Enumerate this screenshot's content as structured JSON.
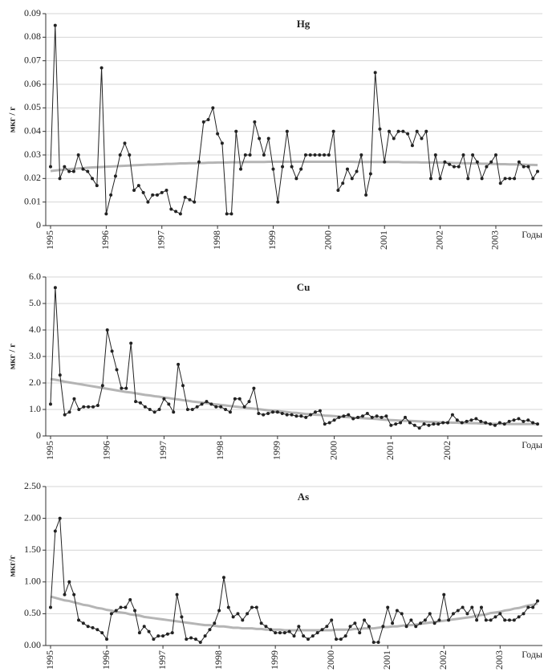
{
  "chart_data": [
    {
      "type": "line",
      "title": "Hg",
      "y_label": "мкг / г",
      "x_label": "Годы",
      "categories": [
        "1995",
        null,
        null,
        null,
        null,
        null,
        null,
        null,
        null,
        null,
        null,
        null,
        "1996",
        null,
        null,
        null,
        null,
        null,
        null,
        null,
        null,
        null,
        null,
        null,
        "1997",
        null,
        null,
        null,
        null,
        null,
        null,
        null,
        null,
        null,
        null,
        null,
        "1998",
        null,
        null,
        null,
        null,
        null,
        null,
        null,
        null,
        null,
        null,
        null,
        "1999",
        null,
        null,
        null,
        null,
        null,
        null,
        null,
        null,
        null,
        null,
        null,
        "2000",
        null,
        null,
        null,
        null,
        null,
        null,
        null,
        null,
        null,
        null,
        null,
        "2001",
        null,
        null,
        null,
        null,
        null,
        null,
        null,
        null,
        null,
        null,
        null,
        "2002",
        null,
        null,
        null,
        null,
        null,
        null,
        null,
        null,
        null,
        null,
        null,
        "2003",
        null,
        null,
        null,
        null,
        null,
        null,
        null,
        null,
        null
      ],
      "series": [
        {
          "color": "#222222",
          "markers": true,
          "values": [
            0.025,
            0.085,
            0.02,
            0.025,
            0.023,
            0.023,
            0.03,
            0.024,
            0.023,
            0.02,
            0.017,
            0.067,
            0.005,
            0.013,
            0.021,
            0.03,
            0.035,
            0.03,
            0.015,
            0.017,
            0.014,
            0.01,
            0.013,
            0.013,
            0.014,
            0.015,
            0.007,
            0.006,
            0.005,
            0.012,
            0.011,
            0.01,
            0.027,
            0.044,
            0.045,
            0.05,
            0.039,
            0.035,
            0.005,
            0.005,
            0.04,
            0.024,
            0.03,
            0.03,
            0.044,
            0.037,
            0.03,
            0.037,
            0.024,
            0.01,
            0.025,
            0.04,
            0.025,
            0.02,
            0.024,
            0.03,
            0.03,
            0.03,
            0.03,
            0.03,
            0.03,
            0.04,
            0.015,
            0.018,
            0.024,
            0.02,
            0.023,
            0.03,
            0.013,
            0.022,
            0.065,
            0.041,
            0.027,
            0.04,
            0.037,
            0.04,
            0.04,
            0.039,
            0.034,
            0.04,
            0.037,
            0.04,
            0.02,
            0.03,
            0.02,
            0.027,
            0.026,
            0.025,
            0.025,
            0.03,
            0.02,
            0.03,
            0.027,
            0.02,
            0.025,
            0.027,
            0.03,
            0.018,
            0.02,
            0.02,
            0.02,
            0.027,
            0.025,
            0.025,
            0.02,
            0.023
          ]
        },
        {
          "color": "#a8a8a8",
          "markers": false,
          "values": [
            0.0232,
            0.0234,
            0.0236,
            0.0238,
            0.024,
            0.0241,
            0.0243,
            0.0244,
            0.0246,
            0.0247,
            0.0248,
            0.0249,
            0.025,
            0.0251,
            0.0252,
            0.0253,
            0.0254,
            0.0255,
            0.0256,
            0.0257,
            0.0258,
            0.0259,
            0.0259,
            0.026,
            0.0261,
            0.0262,
            0.0262,
            0.0263,
            0.0264,
            0.0264,
            0.0265,
            0.0265,
            0.0266,
            0.0266,
            0.0267,
            0.0267,
            0.0268,
            0.0268,
            0.0268,
            0.0269,
            0.0269,
            0.0269,
            0.027,
            0.027,
            0.027,
            0.027,
            0.027,
            0.0271,
            0.0271,
            0.0271,
            0.0271,
            0.0271,
            0.0271,
            0.0271,
            0.0271,
            0.0271,
            0.0271,
            0.0271,
            0.0271,
            0.0271,
            0.0271,
            0.0271,
            0.0271,
            0.0271,
            0.0271,
            0.0271,
            0.027,
            0.027,
            0.027,
            0.027,
            0.027,
            0.027,
            0.027,
            0.027,
            0.027,
            0.027,
            0.0269,
            0.0269,
            0.0269,
            0.0269,
            0.0268,
            0.0268,
            0.0268,
            0.0268,
            0.0268,
            0.0267,
            0.0267,
            0.0266,
            0.0266,
            0.0265,
            0.0265,
            0.0264,
            0.0264,
            0.0263,
            0.0263,
            0.0262,
            0.0262,
            0.0261,
            0.0261,
            0.026,
            0.026,
            0.0259,
            0.0259,
            0.0258,
            0.0258,
            0.0257
          ]
        }
      ],
      "ylim": [
        0,
        0.09
      ],
      "yticks": [
        0,
        0.01,
        0.02,
        0.03,
        0.04,
        0.05,
        0.06,
        0.07,
        0.08,
        0.09
      ],
      "grid": true
    },
    {
      "type": "line",
      "title": "Cu",
      "y_label": "мкг / г",
      "x_label": "Годы",
      "categories": [
        "1995",
        null,
        null,
        null,
        null,
        null,
        null,
        null,
        null,
        null,
        null,
        null,
        "1996",
        null,
        null,
        null,
        null,
        null,
        null,
        null,
        null,
        null,
        null,
        null,
        "1997",
        null,
        null,
        null,
        null,
        null,
        null,
        null,
        null,
        null,
        null,
        null,
        "1998",
        null,
        null,
        null,
        null,
        null,
        null,
        null,
        null,
        null,
        null,
        null,
        "1999",
        null,
        null,
        null,
        null,
        null,
        null,
        null,
        null,
        null,
        null,
        null,
        "2000",
        null,
        null,
        null,
        null,
        null,
        null,
        null,
        null,
        null,
        null,
        null,
        "2001",
        null,
        null,
        null,
        null,
        null,
        null,
        null,
        null,
        null,
        null,
        null,
        "2002",
        null,
        null,
        null,
        null,
        null,
        null,
        null,
        null,
        null,
        null,
        null,
        null,
        null,
        null,
        null,
        null,
        null,
        null,
        null
      ],
      "series": [
        {
          "color": "#222222",
          "markers": true,
          "values": [
            1.2,
            5.6,
            2.3,
            0.8,
            0.9,
            1.4,
            1.0,
            1.1,
            1.1,
            1.1,
            1.15,
            1.9,
            4.0,
            3.2,
            2.5,
            1.8,
            1.8,
            3.5,
            1.3,
            1.25,
            1.1,
            1.0,
            0.9,
            1.0,
            1.4,
            1.2,
            0.9,
            2.7,
            1.9,
            1.0,
            1.0,
            1.1,
            1.2,
            1.3,
            1.2,
            1.1,
            1.1,
            1.0,
            0.9,
            1.4,
            1.4,
            1.1,
            1.3,
            1.8,
            0.85,
            0.8,
            0.85,
            0.9,
            0.9,
            0.85,
            0.8,
            0.8,
            0.75,
            0.75,
            0.7,
            0.8,
            0.9,
            0.95,
            0.45,
            0.5,
            0.6,
            0.7,
            0.75,
            0.8,
            0.65,
            0.7,
            0.75,
            0.85,
            0.7,
            0.75,
            0.7,
            0.75,
            0.4,
            0.45,
            0.5,
            0.7,
            0.5,
            0.4,
            0.3,
            0.45,
            0.4,
            0.45,
            0.45,
            0.5,
            0.5,
            0.8,
            0.6,
            0.5,
            0.55,
            0.6,
            0.65,
            0.55,
            0.5,
            0.45,
            0.4,
            0.5,
            0.45,
            0.55,
            0.6,
            0.65,
            0.55,
            0.6,
            0.5,
            0.45
          ]
        },
        {
          "color": "#a8a8a8",
          "markers": false,
          "values": [
            2.15,
            2.12,
            2.09,
            2.05,
            2.02,
            1.99,
            1.96,
            1.93,
            1.9,
            1.87,
            1.84,
            1.81,
            1.78,
            1.75,
            1.72,
            1.69,
            1.66,
            1.64,
            1.61,
            1.58,
            1.55,
            1.53,
            1.5,
            1.48,
            1.45,
            1.43,
            1.4,
            1.38,
            1.35,
            1.33,
            1.3,
            1.28,
            1.26,
            1.24,
            1.21,
            1.19,
            1.17,
            1.15,
            1.13,
            1.11,
            1.09,
            1.07,
            1.05,
            1.03,
            1.01,
            0.99,
            0.97,
            0.95,
            0.94,
            0.92,
            0.9,
            0.88,
            0.87,
            0.85,
            0.83,
            0.82,
            0.8,
            0.79,
            0.77,
            0.76,
            0.75,
            0.73,
            0.72,
            0.71,
            0.69,
            0.68,
            0.67,
            0.66,
            0.65,
            0.64,
            0.62,
            0.61,
            0.6,
            0.59,
            0.58,
            0.57,
            0.57,
            0.56,
            0.55,
            0.54,
            0.53,
            0.53,
            0.52,
            0.51,
            0.51,
            0.5,
            0.5,
            0.49,
            0.49,
            0.48,
            0.48,
            0.47,
            0.47,
            0.46,
            0.46,
            0.46,
            0.46,
            0.45,
            0.45,
            0.45,
            0.45,
            0.45,
            0.45,
            0.45
          ]
        }
      ],
      "ylim": [
        0,
        6
      ],
      "yticks": [
        0,
        {
          "value": 1,
          "label": "1.0"
        },
        {
          "value": 2,
          "label": "2.0"
        },
        {
          "value": 3,
          "label": "3.0"
        },
        {
          "value": 4,
          "label": "4.0"
        },
        {
          "value": 5,
          "label": "5.0"
        },
        {
          "value": 6,
          "label": "6.0"
        }
      ],
      "grid": true
    },
    {
      "type": "line",
      "title": "As",
      "y_label": "мкг/г",
      "x_label": "Годы",
      "categories": [
        "1995",
        null,
        null,
        null,
        null,
        null,
        null,
        null,
        null,
        null,
        null,
        null,
        "1996",
        null,
        null,
        null,
        null,
        null,
        null,
        null,
        null,
        null,
        null,
        null,
        "1997",
        null,
        null,
        null,
        null,
        null,
        null,
        null,
        null,
        null,
        null,
        null,
        "1998",
        null,
        null,
        null,
        null,
        null,
        null,
        null,
        null,
        null,
        null,
        null,
        "1999",
        null,
        null,
        null,
        null,
        null,
        null,
        null,
        null,
        null,
        null,
        null,
        "2000",
        null,
        null,
        null,
        null,
        null,
        null,
        null,
        null,
        null,
        null,
        null,
        "2001",
        null,
        null,
        null,
        null,
        null,
        null,
        null,
        null,
        null,
        null,
        null,
        "2002",
        null,
        null,
        null,
        null,
        null,
        null,
        null,
        null,
        null,
        null,
        null,
        "2003",
        null,
        null,
        null,
        null,
        null,
        null,
        null,
        null
      ],
      "series": [
        {
          "color": "#222222",
          "markers": true,
          "values": [
            0.6,
            1.8,
            2.0,
            0.8,
            1.0,
            0.8,
            0.4,
            0.35,
            0.3,
            0.28,
            0.25,
            0.2,
            0.1,
            0.5,
            0.55,
            0.6,
            0.6,
            0.72,
            0.55,
            0.2,
            0.3,
            0.22,
            0.1,
            0.15,
            0.15,
            0.18,
            0.2,
            0.8,
            0.45,
            0.1,
            0.12,
            0.1,
            0.05,
            0.15,
            0.25,
            0.35,
            0.55,
            1.07,
            0.6,
            0.45,
            0.5,
            0.4,
            0.5,
            0.6,
            0.6,
            0.35,
            0.3,
            0.25,
            0.2,
            0.2,
            0.2,
            0.22,
            0.15,
            0.3,
            0.15,
            0.1,
            0.15,
            0.2,
            0.25,
            0.3,
            0.4,
            0.1,
            0.1,
            0.15,
            0.3,
            0.35,
            0.2,
            0.4,
            0.3,
            0.05,
            0.05,
            0.3,
            0.6,
            0.35,
            0.55,
            0.5,
            0.3,
            0.4,
            0.3,
            0.35,
            0.4,
            0.5,
            0.35,
            0.4,
            0.8,
            0.4,
            0.5,
            0.55,
            0.6,
            0.5,
            0.6,
            0.4,
            0.6,
            0.4,
            0.4,
            0.45,
            0.5,
            0.4,
            0.4,
            0.4,
            0.45,
            0.5,
            0.6,
            0.6,
            0.7
          ]
        },
        {
          "color": "#a8a8a8",
          "markers": false,
          "values": [
            0.77,
            0.75,
            0.73,
            0.71,
            0.7,
            0.68,
            0.66,
            0.64,
            0.63,
            0.61,
            0.59,
            0.58,
            0.56,
            0.55,
            0.53,
            0.52,
            0.51,
            0.49,
            0.48,
            0.47,
            0.45,
            0.44,
            0.43,
            0.42,
            0.41,
            0.4,
            0.39,
            0.38,
            0.37,
            0.36,
            0.35,
            0.34,
            0.33,
            0.32,
            0.32,
            0.31,
            0.3,
            0.3,
            0.29,
            0.28,
            0.28,
            0.27,
            0.27,
            0.27,
            0.26,
            0.26,
            0.25,
            0.25,
            0.25,
            0.25,
            0.24,
            0.24,
            0.24,
            0.24,
            0.24,
            0.24,
            0.24,
            0.24,
            0.24,
            0.24,
            0.24,
            0.25,
            0.25,
            0.25,
            0.25,
            0.26,
            0.26,
            0.27,
            0.27,
            0.27,
            0.28,
            0.29,
            0.29,
            0.3,
            0.3,
            0.31,
            0.32,
            0.32,
            0.33,
            0.34,
            0.35,
            0.36,
            0.37,
            0.38,
            0.39,
            0.4,
            0.41,
            0.42,
            0.43,
            0.44,
            0.45,
            0.47,
            0.48,
            0.49,
            0.51,
            0.52,
            0.53,
            0.55,
            0.56,
            0.58,
            0.59,
            0.61,
            0.63,
            0.64,
            0.66
          ]
        }
      ],
      "ylim": [
        0,
        2.5
      ],
      "yticks": [
        {
          "value": 0,
          "label": "0.00"
        },
        {
          "value": 0.5,
          "label": "0.50"
        },
        {
          "value": 1,
          "label": "1.00"
        },
        {
          "value": 1.5,
          "label": "1.50"
        },
        {
          "value": 2,
          "label": "2.00"
        },
        {
          "value": 2.5,
          "label": "2.50"
        }
      ],
      "grid": true
    }
  ]
}
